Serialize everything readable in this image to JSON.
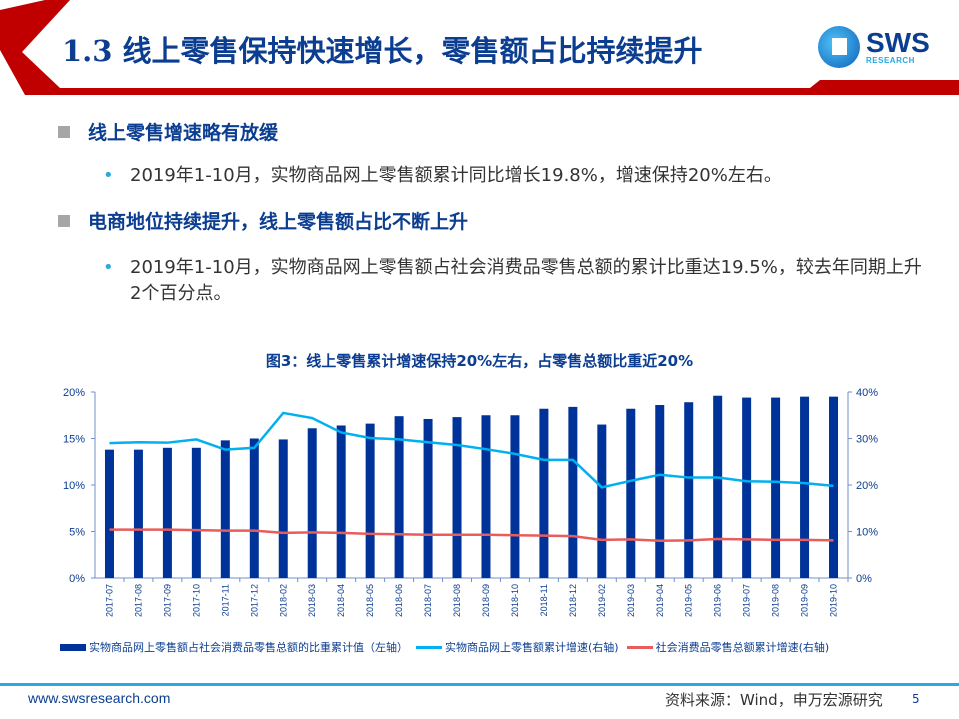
{
  "header": {
    "title": "1.3 线上零售保持快速增长，零售额占比持续提升",
    "logo_text": "SWS",
    "logo_sub": "RESEARCH",
    "accent": "#c00000"
  },
  "sections": [
    {
      "heading": "线上零售增速略有放缓",
      "bullet": "2019年1-10月，实物商品网上零售额累计同比增长19.8%，增速保持20%左右。"
    },
    {
      "heading": "电商地位持续提升，线上零售额占比不断上升",
      "bullet": "2019年1-10月，实物商品网上零售额占社会消费品零售总额的累计比重达19.5%，较去年同期上升2个百分点。"
    }
  ],
  "bullet_icon": "•",
  "chart_data": {
    "type": "bar+line",
    "title": "图3：线上零售累计增速保持20%左右，占零售总额比重近20%",
    "categories": [
      "2017-07",
      "2017-08",
      "2017-09",
      "2017-10",
      "2017-11",
      "2017-12",
      "2018-02",
      "2018-03",
      "2018-04",
      "2018-05",
      "2018-06",
      "2018-07",
      "2018-08",
      "2018-09",
      "2018-10",
      "2018-11",
      "2018-12",
      "2019-02",
      "2019-03",
      "2019-04",
      "2019-05",
      "2019-06",
      "2019-07",
      "2019-08",
      "2019-09",
      "2019-10"
    ],
    "left_axis": {
      "ylim": [
        0,
        20
      ],
      "ticks": [
        "0%",
        "5%",
        "10%",
        "15%",
        "20%"
      ]
    },
    "right_axis": {
      "ylim": [
        0,
        40
      ],
      "ticks": [
        "0%",
        "10%",
        "20%",
        "30%",
        "40%"
      ]
    },
    "series": [
      {
        "name": "实物商品网上零售额占社会消费品零售总额的比重累计值（左轴）",
        "type": "bar",
        "axis": "left",
        "color": "#003399",
        "values": [
          13.8,
          13.8,
          14.0,
          14.0,
          14.8,
          15.0,
          14.9,
          16.1,
          16.4,
          16.6,
          17.4,
          17.1,
          17.3,
          17.5,
          17.5,
          18.2,
          18.4,
          16.5,
          18.2,
          18.6,
          18.9,
          19.6,
          19.4,
          19.4,
          19.5,
          19.5
        ]
      },
      {
        "name": "实物商品网上零售额累计增速(右轴)",
        "type": "line",
        "axis": "right",
        "color": "#00b0f0",
        "values": [
          29.0,
          29.2,
          29.1,
          29.8,
          27.6,
          28.0,
          35.5,
          34.4,
          31.3,
          30.1,
          29.8,
          29.2,
          28.6,
          27.7,
          26.7,
          25.4,
          25.4,
          19.5,
          20.9,
          22.2,
          21.6,
          21.6,
          20.8,
          20.7,
          20.4,
          19.8
        ]
      },
      {
        "name": "社会消费品零售总额累计增速(右轴)",
        "type": "line",
        "axis": "right",
        "color": "#e85c5c",
        "values": [
          10.4,
          10.4,
          10.4,
          10.3,
          10.2,
          10.2,
          9.7,
          9.8,
          9.7,
          9.5,
          9.4,
          9.3,
          9.3,
          9.3,
          9.2,
          9.1,
          9.0,
          8.2,
          8.3,
          8.0,
          8.1,
          8.4,
          8.3,
          8.2,
          8.2,
          8.1
        ]
      }
    ],
    "legend": "bottom",
    "grid": false
  },
  "footer": {
    "url": "www.swsresearch.com",
    "source": "资料来源：Wind，申万宏源研究",
    "page": "5"
  }
}
